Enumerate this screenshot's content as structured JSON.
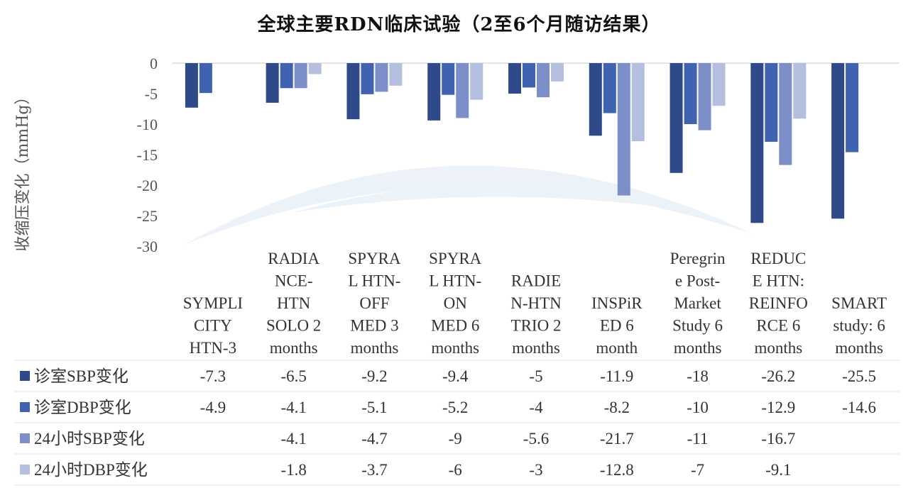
{
  "chart_data": {
    "type": "bar",
    "title": "全球主要RDN临床试验（2至6个月随访结果）",
    "ylabel": "收缩压变化（mmHg）",
    "ylim": [
      -30,
      0
    ],
    "yticks": [
      0,
      -5,
      -10,
      -15,
      -20,
      -25,
      -30
    ],
    "grid": false,
    "legend": "table-left",
    "categories": [
      "SYMPLICITY HTN-3",
      "RADIANCE-HTN SOLO 2 months",
      "SPYRAL HTN-OFF MED 3 months",
      "SPYRAL HTN-ON MED 6 months",
      "RADIEN-HTN TRIO 2 months",
      "INSPiRED 6 month",
      "Peregrine Post-Market Study 6 months",
      "REDUCE HTN: REINFORCE 6 months",
      "SMART study: 6 months"
    ],
    "category_lines": [
      [
        "SYMPLI",
        "CITY",
        "HTN-3"
      ],
      [
        "RADIA",
        "NCE-",
        "HTN",
        "SOLO 2",
        "months"
      ],
      [
        "SPYRA",
        "L HTN-",
        "OFF",
        "MED 3",
        "months"
      ],
      [
        "SPYRA",
        "L HTN-",
        "ON",
        "MED 6",
        "months"
      ],
      [
        "RADIE",
        "N-HTN",
        "TRIO 2",
        "months"
      ],
      [
        "INSPiR",
        "ED 6",
        "month"
      ],
      [
        "Peregrin",
        "e Post-",
        "Market",
        "Study 6",
        "months"
      ],
      [
        "REDUC",
        "E HTN:",
        "REINFO",
        "RCE 6",
        "months"
      ],
      [
        "SMART",
        "study: 6",
        "months"
      ]
    ],
    "series": [
      {
        "name": "诊室SBP变化",
        "color": "#2e4a8a",
        "values": [
          -7.3,
          -6.5,
          -9.2,
          -9.4,
          -5,
          -11.9,
          -18,
          -26.2,
          -25.5
        ]
      },
      {
        "name": "诊室DBP变化",
        "color": "#3f63b0",
        "values": [
          -4.9,
          -4.1,
          -5.1,
          -5.2,
          -4,
          -8.2,
          -10,
          -12.9,
          -14.6
        ]
      },
      {
        "name": "24小时SBP变化",
        "color": "#7d8fc8",
        "values": [
          null,
          -4.1,
          -4.7,
          -9,
          -5.6,
          -21.7,
          -11,
          -16.7,
          null
        ]
      },
      {
        "name": "24小时DBP变化",
        "color": "#b4bedf",
        "values": [
          null,
          -1.8,
          -3.7,
          -6,
          -3,
          -12.8,
          -7,
          -9.1,
          null
        ]
      }
    ]
  }
}
